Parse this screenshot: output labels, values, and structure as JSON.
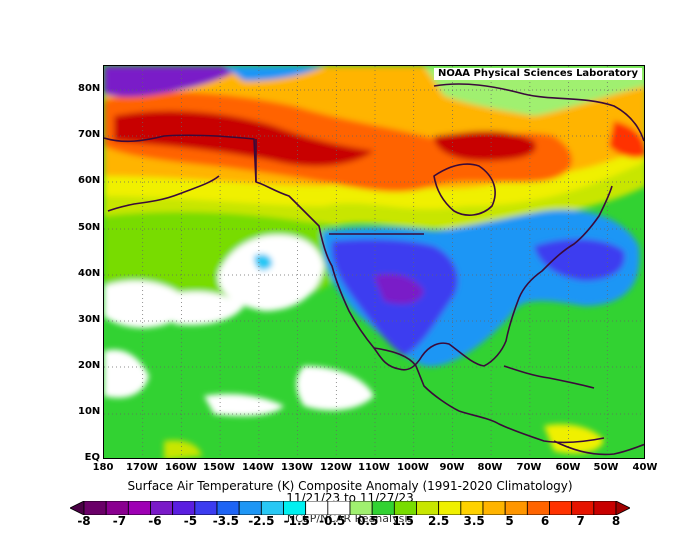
{
  "map": {
    "lab_label": "NOAA Physical Sciences Laboratory",
    "lat_labels": [
      "80N",
      "70N",
      "60N",
      "50N",
      "40N",
      "30N",
      "20N",
      "10N",
      "EQ"
    ],
    "lon_labels": [
      "180",
      "170W",
      "160W",
      "150W",
      "140W",
      "130W",
      "120W",
      "110W",
      "100W",
      "90W",
      "80W",
      "70W",
      "60W",
      "50W",
      "40W"
    ]
  },
  "title": {
    "line1": "Surface Air Temperature (K) Composite Anomaly (1991-2020 Climatology)",
    "line2": "11/21/23  to 11/27/23",
    "subtitle": "NCEP/NCAR Reanalysis"
  },
  "colorbar": {
    "labels": [
      "-8",
      "-7",
      "-6",
      "-5",
      "-3.5",
      "-2.5",
      "-1.5",
      "-0.5",
      "0.5",
      "1.5",
      "2.5",
      "3.5",
      "5",
      "6",
      "7",
      "8"
    ],
    "colors": [
      "#4a0045",
      "#6a0068",
      "#8a0090",
      "#9e00b4",
      "#7a1ac8",
      "#5a1ee0",
      "#3c3cf0",
      "#1e64f5",
      "#1e96f5",
      "#28c8f5",
      "#00f0f0",
      "#ffffff",
      "#ffffff",
      "#a0f070",
      "#32d232",
      "#78dc00",
      "#c8e600",
      "#f0f000",
      "#ffd200",
      "#ffb400",
      "#ff9600",
      "#ff6400",
      "#ff3200",
      "#e61400",
      "#c80000",
      "#a00000"
    ]
  },
  "colors": {
    "cold_deep": "#9e00b4",
    "cold": "#3c3cf0",
    "cool": "#1e96f5",
    "neutral": "#ffffff",
    "mild_warm": "#32d232",
    "warm": "#f0f000",
    "hot": "#ff6400",
    "very_hot": "#c80000"
  }
}
